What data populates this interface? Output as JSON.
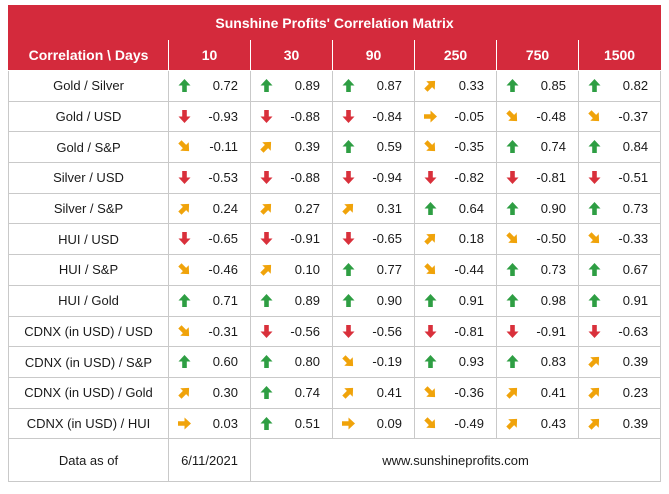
{
  "title": "Sunshine Profits' Correlation Matrix",
  "header": {
    "corner": "Correlation \\ Days",
    "days": [
      "10",
      "30",
      "90",
      "250",
      "750",
      "1500"
    ]
  },
  "colors": {
    "header_bg": "#d42a3c",
    "up_arrow": "#2e9e43",
    "down_arrow": "#d9303b",
    "side_arrow": "#f0a30a"
  },
  "rows": [
    {
      "pair": "Gold / Silver",
      "values": [
        "0.72",
        "0.89",
        "0.87",
        "0.33",
        "0.85",
        "0.82"
      ],
      "arrows": [
        "up",
        "up",
        "up",
        "up-right",
        "up",
        "up"
      ]
    },
    {
      "pair": "Gold / USD",
      "values": [
        "-0.93",
        "-0.88",
        "-0.84",
        "-0.05",
        "-0.48",
        "-0.37"
      ],
      "arrows": [
        "down",
        "down",
        "down",
        "right",
        "down-right",
        "down-right"
      ]
    },
    {
      "pair": "Gold / S&P",
      "values": [
        "-0.11",
        "0.39",
        "0.59",
        "-0.35",
        "0.74",
        "0.84"
      ],
      "arrows": [
        "down-right",
        "up-right",
        "up",
        "down-right",
        "up",
        "up"
      ]
    },
    {
      "pair": "Silver / USD",
      "values": [
        "-0.53",
        "-0.88",
        "-0.94",
        "-0.82",
        "-0.81",
        "-0.51"
      ],
      "arrows": [
        "down",
        "down",
        "down",
        "down",
        "down",
        "down"
      ]
    },
    {
      "pair": "Silver / S&P",
      "values": [
        "0.24",
        "0.27",
        "0.31",
        "0.64",
        "0.90",
        "0.73"
      ],
      "arrows": [
        "up-right",
        "up-right",
        "up-right",
        "up",
        "up",
        "up"
      ]
    },
    {
      "pair": "HUI / USD",
      "values": [
        "-0.65",
        "-0.91",
        "-0.65",
        "0.18",
        "-0.50",
        "-0.33"
      ],
      "arrows": [
        "down",
        "down",
        "down",
        "up-right",
        "down-right",
        "down-right"
      ]
    },
    {
      "pair": "HUI / S&P",
      "values": [
        "-0.46",
        "0.10",
        "0.77",
        "-0.44",
        "0.73",
        "0.67"
      ],
      "arrows": [
        "down-right",
        "up-right",
        "up",
        "down-right",
        "up",
        "up"
      ]
    },
    {
      "pair": "HUI / Gold",
      "values": [
        "0.71",
        "0.89",
        "0.90",
        "0.91",
        "0.98",
        "0.91"
      ],
      "arrows": [
        "up",
        "up",
        "up",
        "up",
        "up",
        "up"
      ]
    },
    {
      "pair": "CDNX (in USD) / USD",
      "values": [
        "-0.31",
        "-0.56",
        "-0.56",
        "-0.81",
        "-0.91",
        "-0.63"
      ],
      "arrows": [
        "down-right",
        "down",
        "down",
        "down",
        "down",
        "down"
      ]
    },
    {
      "pair": "CDNX (in USD) / S&P",
      "values": [
        "0.60",
        "0.80",
        "-0.19",
        "0.93",
        "0.83",
        "0.39"
      ],
      "arrows": [
        "up",
        "up",
        "down-right",
        "up",
        "up",
        "up-right"
      ]
    },
    {
      "pair": "CDNX (in USD) / Gold",
      "values": [
        "0.30",
        "0.74",
        "0.41",
        "-0.36",
        "0.41",
        "0.23"
      ],
      "arrows": [
        "up-right",
        "up",
        "up-right",
        "down-right",
        "up-right",
        "up-right"
      ]
    },
    {
      "pair": "CDNX (in USD) / HUI",
      "values": [
        "0.03",
        "0.51",
        "0.09",
        "-0.49",
        "0.43",
        "0.39"
      ],
      "arrows": [
        "right",
        "up",
        "right",
        "down-right",
        "up-right",
        "up-right"
      ]
    }
  ],
  "footer": {
    "label": "Data as of",
    "date": "6/11/2021",
    "website": "www.sunshineprofits.com"
  }
}
